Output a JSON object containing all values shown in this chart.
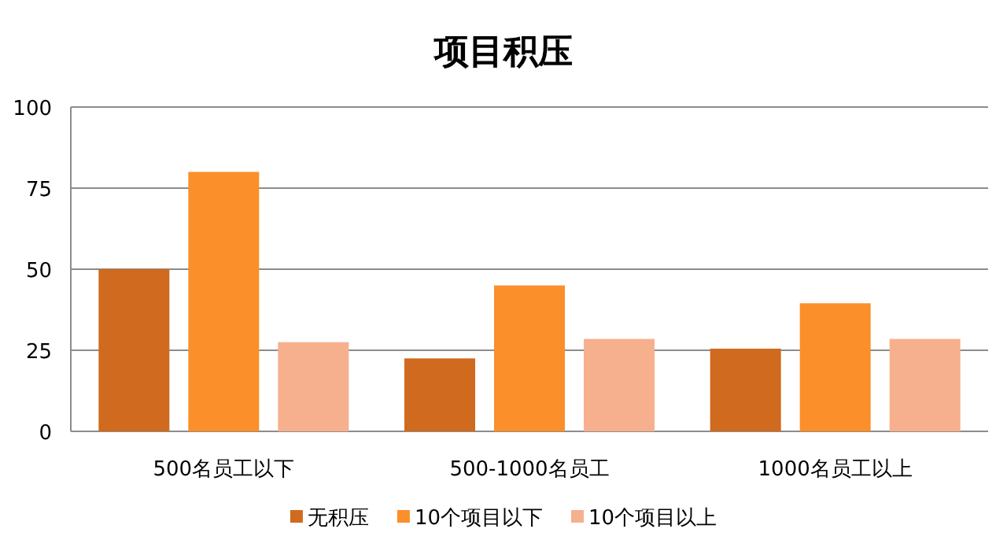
{
  "chart_data": {
    "type": "bar",
    "title": "项目积压",
    "categories": [
      "500名员工以下",
      "500-1000名员工",
      "1000名员工以上"
    ],
    "series": [
      {
        "name": "无积压",
        "color": "#d06a1e",
        "values": [
          50,
          22.5,
          25.5
        ]
      },
      {
        "name": "10个项目以下",
        "color": "#fb8f2a",
        "values": [
          80,
          45,
          39.5
        ]
      },
      {
        "name": "10个项目以上",
        "color": "#f6b08e",
        "values": [
          27.5,
          28.5,
          28.5
        ]
      }
    ],
    "ylim": [
      0,
      100
    ],
    "yticks": [
      0,
      25,
      50,
      75,
      100
    ],
    "grid": "y",
    "legend": "bottom"
  }
}
